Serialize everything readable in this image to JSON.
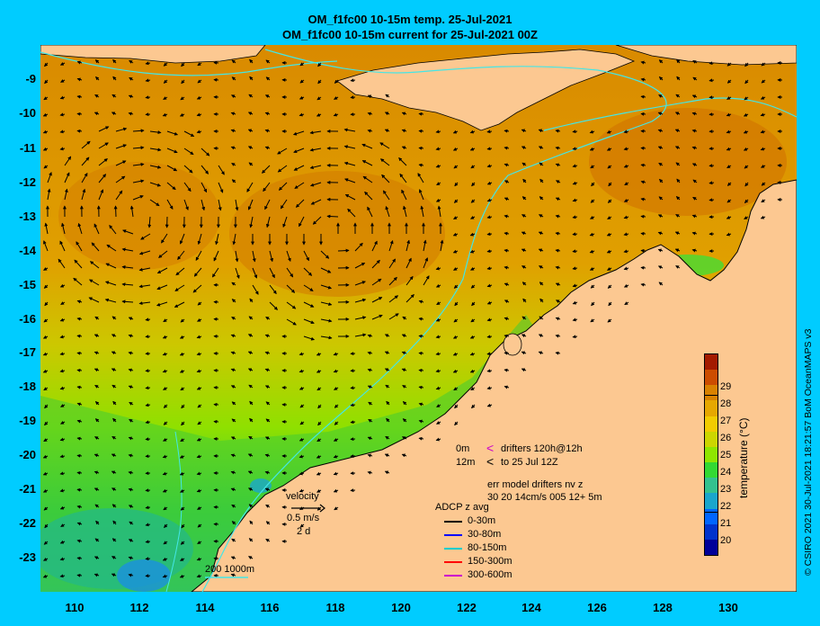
{
  "title": {
    "line1": "OM_f1fc00 10-15m temp. 25-Jul-2021",
    "line2": "OM_f1fc00 10-15m current for 25-Jul-2021 00Z"
  },
  "axes": {
    "y_ticks": [
      "-9",
      "-10",
      "-11",
      "-12",
      "-13",
      "-14",
      "-15",
      "-16",
      "-17",
      "-18",
      "-19",
      "-20",
      "-21",
      "-22",
      "-23"
    ],
    "x_ticks": [
      "110",
      "112",
      "114",
      "116",
      "118",
      "120",
      "122",
      "124",
      "126",
      "128",
      "130"
    ]
  },
  "colorbar": {
    "title": "temperature (°C)",
    "ticks": [
      "29",
      "28",
      "27",
      "26",
      "25",
      "24",
      "23",
      "22",
      "21",
      "20"
    ],
    "colors": [
      "#a31a00",
      "#cc4d00",
      "#d98200",
      "#e6a800",
      "#f2cc00",
      "#ccd600",
      "#8fe600",
      "#33d933",
      "#33c28f",
      "#1aa6cc",
      "#0066ff",
      "#0033cc",
      "#000099"
    ]
  },
  "legend": {
    "drifter_depth_1": "0m",
    "drifter_symbol": "<",
    "drifter_text_1": "drifters 120h@12h",
    "drifter_depth_2": "12m",
    "drifter_text_2": "to 25 Jul 12Z",
    "err_line1": "err model drifters nv z",
    "err_line2": "30 20 14cm/s 005 12+ 5m",
    "velocity_label": "velocity",
    "velocity_value": "0.5 m/s",
    "velocity_days": "2 d",
    "adcp_title": "ADCP z avg",
    "adcp_items": [
      {
        "label": "0-30m",
        "color": "#000000"
      },
      {
        "label": "30-80m",
        "color": "#0000ff"
      },
      {
        "label": "80-150m",
        "color": "#00cccc"
      },
      {
        "label": "150-300m",
        "color": "#ff0000"
      },
      {
        "label": "300-600m",
        "color": "#cc00cc"
      }
    ],
    "bathy_label": "200  1000m"
  },
  "credit": "© CSIRO 2021  30-Jul-2021 18:21:57 BoM OceanMAPS v3"
}
